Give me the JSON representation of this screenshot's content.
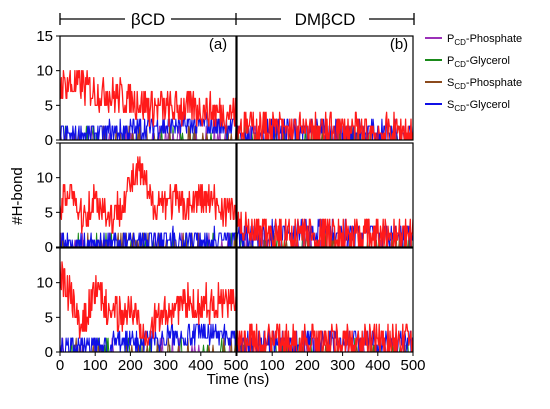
{
  "chart_data": {
    "type": "line",
    "headers": [
      "βCD",
      "DMβCD"
    ],
    "panel_labels": [
      "(a)",
      "(b)"
    ],
    "xlabel": "Time (ns)",
    "ylabel": "#H-bond",
    "xlim": [
      0,
      500
    ],
    "ylim": [
      0,
      15
    ],
    "x_ticks": [
      0,
      100,
      200,
      300,
      400,
      500
    ],
    "y_ticks": [
      0,
      5,
      10,
      15
    ],
    "rows": 3,
    "legend": [
      {
        "name_main": "P",
        "name_sub": "CD",
        "name_rest": "-Phosphate",
        "color": "#9b30b8"
      },
      {
        "name_main": "P",
        "name_sub": "CD",
        "name_rest": "-Glycerol",
        "color": "#1a8a1a"
      },
      {
        "name_main": "S",
        "name_sub": "CD",
        "name_rest": "-Phosphate",
        "color": "#8b4a1c"
      },
      {
        "name_main": "S",
        "name_sub": "CD",
        "name_rest": "-Glycerol",
        "color": "#1010e6"
      }
    ],
    "series_colors": {
      "p_phosphate": "#9b30b8",
      "p_glycerol": "#1a8a1a",
      "s_phosphate": "#8b4a1c",
      "s_glycerol": "#1010e6",
      "total": "#ff1a1a"
    },
    "panels": [
      {
        "row": 0,
        "col": 0,
        "total_trend": [
          [
            0,
            8
          ],
          [
            50,
            8
          ],
          [
            100,
            7
          ],
          [
            150,
            6.5
          ],
          [
            200,
            6
          ],
          [
            250,
            5
          ],
          [
            300,
            4.5
          ],
          [
            350,
            4.5
          ],
          [
            400,
            4.5
          ],
          [
            450,
            4
          ],
          [
            500,
            4
          ]
        ],
        "glycerol_trend": [
          [
            0,
            0.5
          ],
          [
            100,
            0.8
          ],
          [
            200,
            1.5
          ],
          [
            300,
            2
          ],
          [
            400,
            2.2
          ],
          [
            500,
            2
          ]
        ]
      },
      {
        "row": 0,
        "col": 1,
        "total_trend": [
          [
            0,
            2
          ],
          [
            100,
            1.5
          ],
          [
            200,
            1.2
          ],
          [
            300,
            1.2
          ],
          [
            400,
            1
          ],
          [
            500,
            1.2
          ]
        ],
        "glycerol_trend": [
          [
            0,
            1
          ],
          [
            100,
            1.2
          ],
          [
            200,
            1.2
          ],
          [
            300,
            1.2
          ],
          [
            400,
            1.2
          ],
          [
            500,
            1.3
          ]
        ]
      },
      {
        "row": 1,
        "col": 0,
        "total_trend": [
          [
            0,
            5
          ],
          [
            30,
            9
          ],
          [
            60,
            4
          ],
          [
            100,
            7
          ],
          [
            150,
            4
          ],
          [
            200,
            9
          ],
          [
            230,
            11
          ],
          [
            260,
            6
          ],
          [
            300,
            7
          ],
          [
            350,
            6
          ],
          [
            400,
            7
          ],
          [
            450,
            6
          ],
          [
            500,
            5
          ]
        ],
        "glycerol_trend": [
          [
            0,
            0.5
          ],
          [
            100,
            0.5
          ],
          [
            200,
            0.8
          ],
          [
            300,
            1
          ],
          [
            400,
            1
          ],
          [
            500,
            1
          ]
        ]
      },
      {
        "row": 1,
        "col": 1,
        "total_trend": [
          [
            0,
            4
          ],
          [
            30,
            2
          ],
          [
            100,
            1.5
          ],
          [
            200,
            2
          ],
          [
            300,
            1.5
          ],
          [
            400,
            1.5
          ],
          [
            500,
            1.5
          ]
        ],
        "glycerol_trend": [
          [
            0,
            1.5
          ],
          [
            100,
            2
          ],
          [
            200,
            2.5
          ],
          [
            300,
            2
          ],
          [
            400,
            1.8
          ],
          [
            500,
            1.8
          ]
        ]
      },
      {
        "row": 2,
        "col": 0,
        "total_trend": [
          [
            0,
            11
          ],
          [
            30,
            8
          ],
          [
            60,
            3
          ],
          [
            100,
            9
          ],
          [
            150,
            5
          ],
          [
            200,
            6
          ],
          [
            250,
            3
          ],
          [
            300,
            6
          ],
          [
            350,
            7
          ],
          [
            400,
            7
          ],
          [
            450,
            7
          ],
          [
            500,
            7
          ]
        ],
        "glycerol_trend": [
          [
            0,
            0.5
          ],
          [
            100,
            0.8
          ],
          [
            200,
            1.5
          ],
          [
            300,
            2.2
          ],
          [
            400,
            2.5
          ],
          [
            500,
            2.2
          ]
        ]
      },
      {
        "row": 2,
        "col": 1,
        "total_trend": [
          [
            0,
            1.5
          ],
          [
            100,
            1.5
          ],
          [
            200,
            1.2
          ],
          [
            300,
            1.2
          ],
          [
            400,
            1.5
          ],
          [
            500,
            2
          ]
        ],
        "glycerol_trend": [
          [
            0,
            1
          ],
          [
            100,
            1.3
          ],
          [
            200,
            1.5
          ],
          [
            300,
            1.5
          ],
          [
            400,
            1.5
          ],
          [
            500,
            1.5
          ]
        ]
      }
    ]
  }
}
